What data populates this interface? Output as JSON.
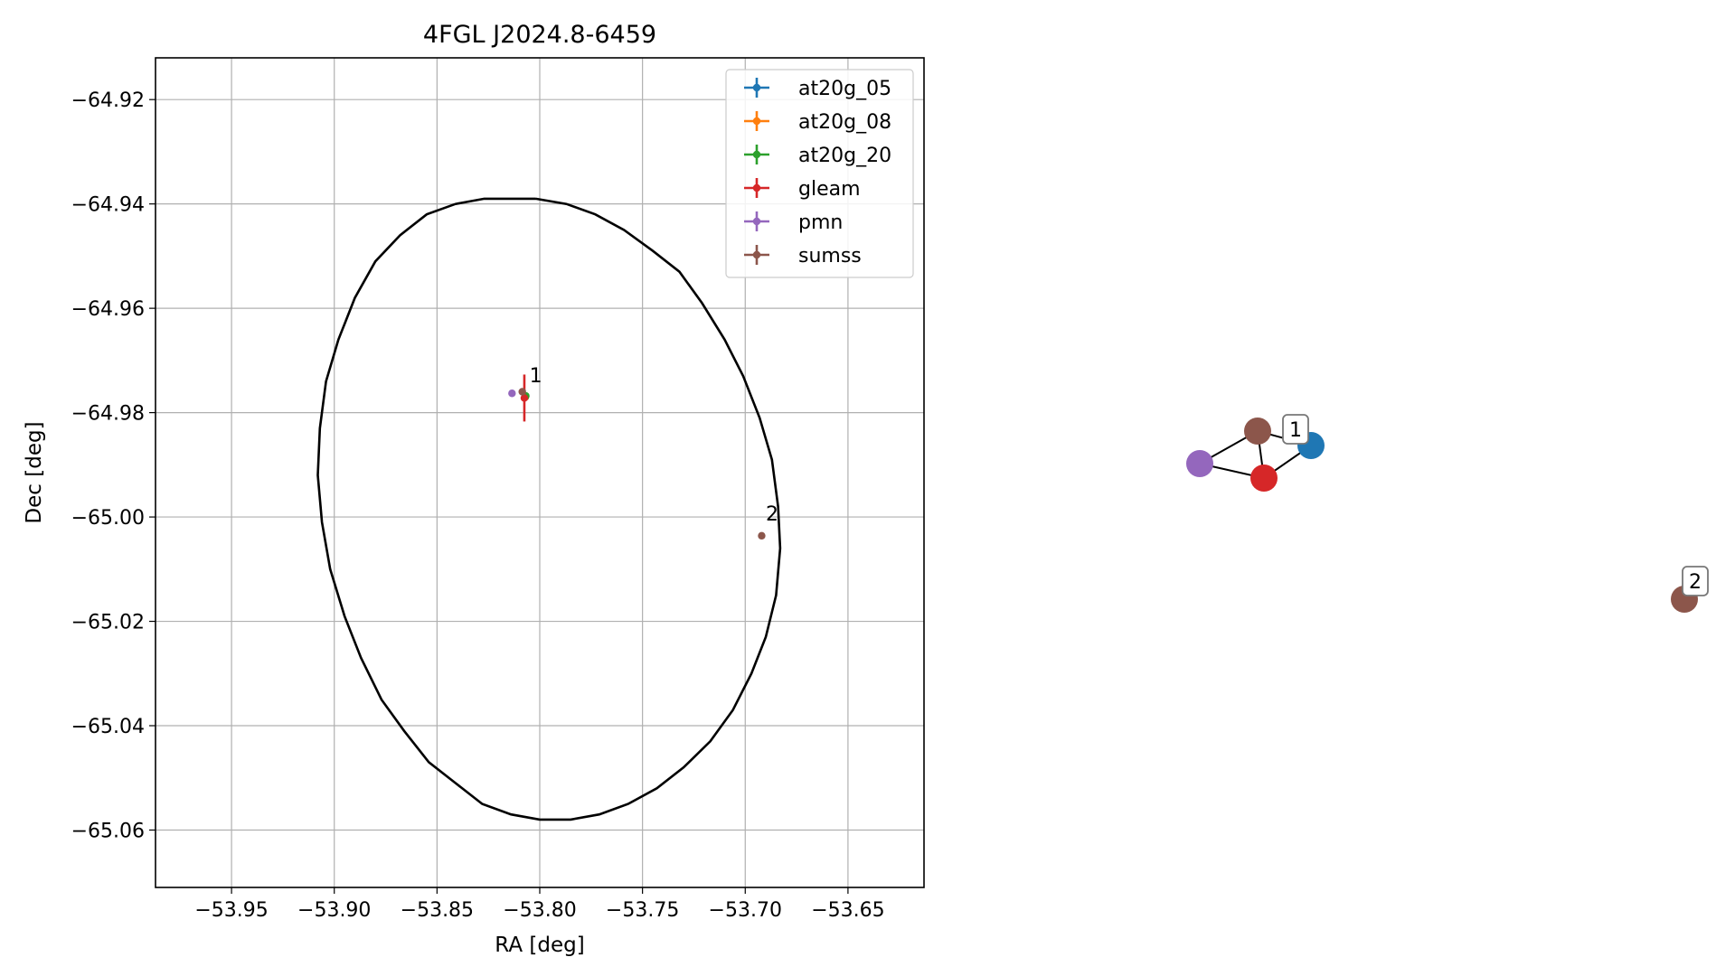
{
  "chart_data": [
    {
      "type": "scatter",
      "title": "4FGL J2024.8-6459",
      "xlabel": "RA [deg]",
      "ylabel": "Dec [deg]",
      "xlim": [
        -53.987,
        -53.613
      ],
      "ylim": [
        -65.071,
        -64.912
      ],
      "xticks": [
        -53.95,
        -53.9,
        -53.85,
        -53.8,
        -53.75,
        -53.7,
        -53.65
      ],
      "xtick_labels": [
        "−53.95",
        "−53.90",
        "−53.85",
        "−53.80",
        "−53.75",
        "−53.70",
        "−53.65"
      ],
      "yticks": [
        -64.92,
        -64.94,
        -64.96,
        -64.98,
        -65.0,
        -65.02,
        -65.04,
        -65.06
      ],
      "ytick_labels": [
        "−64.92",
        "−64.94",
        "−64.96",
        "−64.98",
        "−65.00",
        "−65.02",
        "−65.04",
        "−65.06"
      ],
      "grid": true,
      "legend_position": "top-right",
      "series": [
        {
          "name": "at20g_05",
          "color": "#1f77b4",
          "points": [
            {
              "x": -53.807,
              "y": -64.977
            }
          ]
        },
        {
          "name": "at20g_08",
          "color": "#ff7f0e",
          "points": [
            {
              "x": -53.807,
              "y": -64.977
            }
          ]
        },
        {
          "name": "at20g_20",
          "color": "#2ca02c",
          "points": [
            {
              "x": -53.8068,
              "y": -64.9768
            }
          ]
        },
        {
          "name": "gleam",
          "color": "#d62728",
          "points": [
            {
              "x": -53.8075,
              "y": -64.9772,
              "yerr": 0.0045,
              "xerr": 0.0005
            }
          ]
        },
        {
          "name": "pmn",
          "color": "#9467bd",
          "points": [
            {
              "x": -53.8135,
              "y": -64.9763
            }
          ]
        },
        {
          "name": "sumss",
          "color": "#8c564b",
          "points": [
            {
              "x": -53.8085,
              "y": -64.976
            },
            {
              "x": -53.692,
              "y": -65.0036
            }
          ]
        }
      ],
      "ellipse": {
        "color": "#000000",
        "points": [
          [
            -53.802,
            -64.939
          ],
          [
            -53.787,
            -64.94
          ],
          [
            -53.773,
            -64.942
          ],
          [
            -53.759,
            -64.945
          ],
          [
            -53.745,
            -64.949
          ],
          [
            -53.732,
            -64.953
          ],
          [
            -53.721,
            -64.959
          ],
          [
            -53.71,
            -64.966
          ],
          [
            -53.701,
            -64.973
          ],
          [
            -53.693,
            -64.981
          ],
          [
            -53.687,
            -64.989
          ],
          [
            -53.684,
            -64.998
          ],
          [
            -53.683,
            -65.006
          ],
          [
            -53.685,
            -65.015
          ],
          [
            -53.69,
            -65.023
          ],
          [
            -53.697,
            -65.03
          ],
          [
            -53.706,
            -65.037
          ],
          [
            -53.717,
            -65.043
          ],
          [
            -53.73,
            -65.048
          ],
          [
            -53.743,
            -65.052
          ],
          [
            -53.757,
            -65.055
          ],
          [
            -53.771,
            -65.057
          ],
          [
            -53.785,
            -65.058
          ],
          [
            -53.8,
            -65.058
          ],
          [
            -53.814,
            -65.057
          ],
          [
            -53.828,
            -65.055
          ],
          [
            -53.841,
            -65.051
          ],
          [
            -53.854,
            -65.047
          ],
          [
            -53.866,
            -65.041
          ],
          [
            -53.877,
            -65.035
          ],
          [
            -53.887,
            -65.027
          ],
          [
            -53.895,
            -65.019
          ],
          [
            -53.902,
            -65.01
          ],
          [
            -53.906,
            -65.001
          ],
          [
            -53.908,
            -64.992
          ],
          [
            -53.907,
            -64.983
          ],
          [
            -53.904,
            -64.974
          ],
          [
            -53.898,
            -64.966
          ],
          [
            -53.89,
            -64.958
          ],
          [
            -53.88,
            -64.951
          ],
          [
            -53.868,
            -64.946
          ],
          [
            -53.855,
            -64.942
          ],
          [
            -53.841,
            -64.94
          ],
          [
            -53.827,
            -64.939
          ],
          [
            -53.814,
            -64.939
          ],
          [
            -53.802,
            -64.939
          ]
        ]
      },
      "annotations": [
        {
          "text": "1",
          "x": -53.805,
          "y": -64.9735
        },
        {
          "text": "2",
          "x": -53.69,
          "y": -65.0
        }
      ]
    },
    {
      "type": "network",
      "nodes": [
        {
          "id": "sumss",
          "color": "#8c564b"
        },
        {
          "id": "at20g",
          "color": "#1f77b4"
        },
        {
          "id": "pmn",
          "color": "#9467bd"
        },
        {
          "id": "gleam",
          "color": "#d62728"
        },
        {
          "id": "sumss2",
          "color": "#8c564b"
        }
      ],
      "edges": [
        [
          "sumss",
          "at20g"
        ],
        [
          "sumss",
          "pmn"
        ],
        [
          "sumss",
          "gleam"
        ],
        [
          "pmn",
          "gleam"
        ],
        [
          "gleam",
          "at20g"
        ]
      ],
      "labels": [
        {
          "text": "1",
          "node": "at20g"
        },
        {
          "text": "2",
          "node": "sumss2"
        }
      ]
    }
  ]
}
